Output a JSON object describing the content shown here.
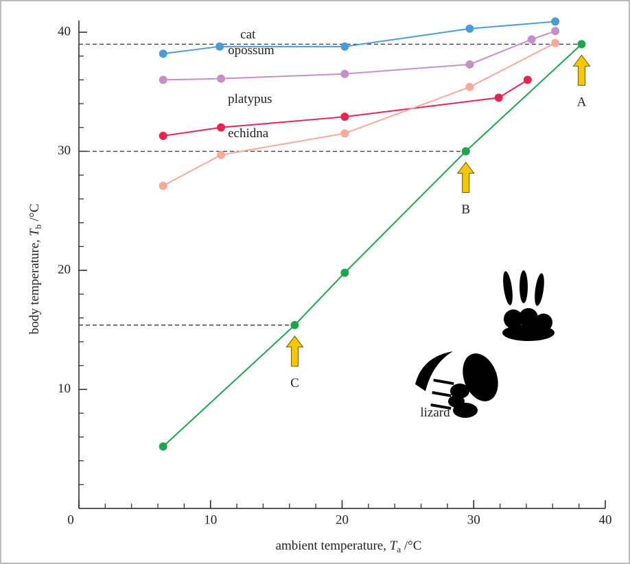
{
  "chart_data": {
    "type": "line",
    "xlabel": {
      "prefix": "ambient temperature, ",
      "symbol": "T",
      "subscript": "a",
      "suffix": " /°C"
    },
    "ylabel": {
      "prefix": "body temperature, ",
      "symbol": "T",
      "subscript": "b",
      "suffix": " /°C"
    },
    "xlim": [
      0,
      40
    ],
    "ylim": [
      0,
      40
    ],
    "xticks": [
      0,
      10,
      20,
      30,
      40
    ],
    "yticks": [
      10,
      20,
      30,
      40
    ],
    "xminor_ticks": [
      2,
      4,
      6,
      8,
      12,
      14,
      16,
      18,
      22,
      24,
      26,
      28,
      32,
      34,
      36,
      38
    ],
    "yminor_ticks": [
      2,
      4,
      6,
      8,
      12,
      14,
      16,
      18,
      22,
      24,
      26,
      28,
      32,
      34,
      36,
      38
    ],
    "series": [
      {
        "name": "cat",
        "color": "#4d9bd6",
        "x": [
          6.4,
          10.7,
          20.2,
          29.7,
          36.2
        ],
        "values": [
          38.2,
          38.8,
          38.8,
          40.3,
          40.9
        ]
      },
      {
        "name": "opossum",
        "color": "#c58fc9",
        "x": [
          6.4,
          10.8,
          20.2,
          29.7,
          34.4,
          36.2
        ],
        "values": [
          36.0,
          36.1,
          36.5,
          37.3,
          39.4,
          40.1
        ]
      },
      {
        "name": "platypus",
        "color": "#e8234f",
        "x": [
          6.4,
          10.8,
          20.2,
          31.9,
          34.1
        ],
        "values": [
          31.3,
          32.0,
          32.9,
          34.5,
          36.0
        ]
      },
      {
        "name": "echidna",
        "color": "#f7a99a",
        "x": [
          6.4,
          10.8,
          20.2,
          29.7,
          36.2
        ],
        "values": [
          27.1,
          29.7,
          31.5,
          35.4,
          39.1
        ]
      },
      {
        "name": "lizard",
        "color": "#1fa34d",
        "x": [
          6.4,
          16.4,
          20.2,
          29.4,
          38.2
        ],
        "values": [
          5.2,
          15.4,
          19.8,
          30.0,
          39.0
        ]
      }
    ],
    "annotations": [
      {
        "text": "A",
        "x": 38.2,
        "y": 39.0
      },
      {
        "text": "B",
        "x": 29.4,
        "y": 30.0
      },
      {
        "text": "C",
        "x": 16.4,
        "y": 15.4
      }
    ]
  }
}
